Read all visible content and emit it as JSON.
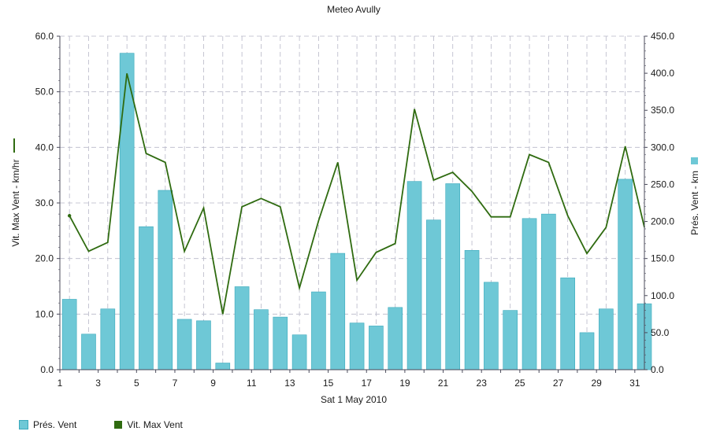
{
  "colors": {
    "bar": "#6ec8d6",
    "bar_stroke": "#3aa9bc",
    "line": "#2f6b10",
    "grid": "#b8b8c8",
    "axis": "#4a4a5a"
  },
  "legend": {
    "pres_label": "Prés. Vent",
    "vit_label": "Vit. Max Vent"
  },
  "chart_data": {
    "type": "bar",
    "title": "Meteo  Avully",
    "xlabel": "Sat 1 May 2010",
    "x": [
      1,
      2,
      3,
      4,
      5,
      6,
      7,
      8,
      9,
      10,
      11,
      12,
      13,
      14,
      15,
      16,
      17,
      18,
      19,
      20,
      21,
      22,
      23,
      24,
      25,
      26,
      27,
      28,
      29,
      30,
      31
    ],
    "x_ticks": [
      "1",
      "3",
      "5",
      "7",
      "9",
      "11",
      "13",
      "15",
      "17",
      "19",
      "21",
      "23",
      "25",
      "27",
      "29",
      "31"
    ],
    "grid": true,
    "legend_position": "bottom-left",
    "y_left": {
      "label": "Vit. Max Vent - km/hr",
      "lim": [
        0,
        60
      ],
      "ticks": [
        "0.0",
        "10.0",
        "20.0",
        "30.0",
        "40.0",
        "50.0",
        "60.0"
      ]
    },
    "y_right": {
      "label": "Prés. Vent - km",
      "lim": [
        0,
        450
      ],
      "ticks": [
        "0.0",
        "50.0",
        "100.0",
        "150.0",
        "200.0",
        "250.0",
        "300.0",
        "350.0",
        "400.0",
        "450.0"
      ]
    },
    "series": [
      {
        "name": "Prés. Vent",
        "type": "bar",
        "axis": "right",
        "values": [
          95,
          48,
          82,
          427,
          193,
          242,
          68,
          66,
          9,
          112,
          81,
          71,
          47,
          105,
          157,
          63,
          59,
          84,
          254,
          202,
          251,
          161,
          118,
          80,
          204,
          210,
          124,
          50,
          82,
          257,
          89
        ]
      },
      {
        "name": "Vit. Max Vent",
        "type": "line",
        "axis": "left",
        "values": [
          27.7,
          21.3,
          22.9,
          53.3,
          38.9,
          37.3,
          21.3,
          29.1,
          10.0,
          29.3,
          30.8,
          29.3,
          14.7,
          26.8,
          37.3,
          16.1,
          21.1,
          22.7,
          46.9,
          34.1,
          35.5,
          32.1,
          27.5,
          27.5,
          38.7,
          37.3,
          27.7,
          20.9,
          25.6,
          40.2,
          25.6
        ]
      }
    ]
  }
}
